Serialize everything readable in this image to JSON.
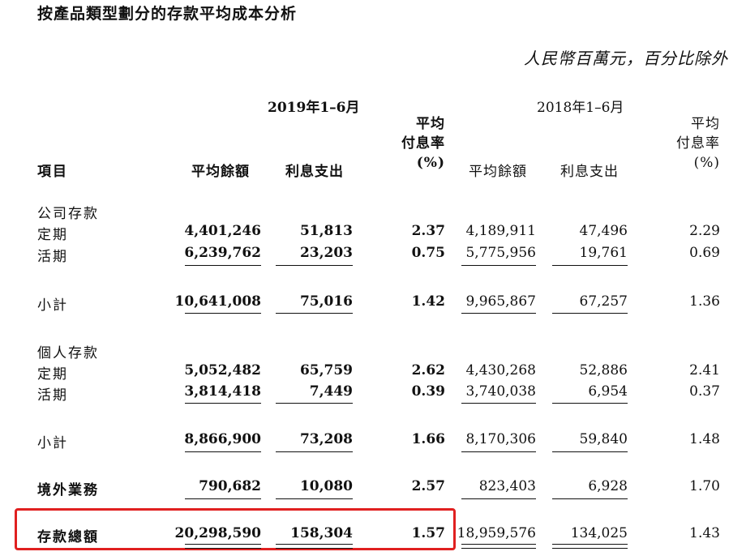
{
  "title": "按產品類型劃分的存款平均成本分析",
  "unit_note": "人民幣百萬元，百分比除外",
  "periods": {
    "current": "2019年1–6月",
    "prior": "2018年1–6月"
  },
  "headers": {
    "item": "項目",
    "avg_balance": "平均餘額",
    "interest": "利息支出",
    "rate_line1": "平均",
    "rate_line2": "付息率",
    "rate_line3": "(%)"
  },
  "sections": {
    "corporate": {
      "label": "公司存款",
      "time": {
        "label": "定期",
        "c_bal": "4,401,246",
        "c_int": "51,813",
        "c_rate": "2.37",
        "p_bal": "4,189,911",
        "p_int": "47,496",
        "p_rate": "2.29"
      },
      "demand": {
        "label": "活期",
        "c_bal": "6,239,762",
        "c_int": "23,203",
        "c_rate": "0.75",
        "p_bal": "5,775,956",
        "p_int": "19,761",
        "p_rate": "0.69"
      },
      "subtotal": {
        "label": "小計",
        "c_bal": "10,641,008",
        "c_int": "75,016",
        "c_rate": "1.42",
        "p_bal": "9,965,867",
        "p_int": "67,257",
        "p_rate": "1.36"
      }
    },
    "personal": {
      "label": "個人存款",
      "time": {
        "label": "定期",
        "c_bal": "5,052,482",
        "c_int": "65,759",
        "c_rate": "2.62",
        "p_bal": "4,430,268",
        "p_int": "52,886",
        "p_rate": "2.41"
      },
      "demand": {
        "label": "活期",
        "c_bal": "3,814,418",
        "c_int": "7,449",
        "c_rate": "0.39",
        "p_bal": "3,740,038",
        "p_int": "6,954",
        "p_rate": "0.37"
      },
      "subtotal": {
        "label": "小計",
        "c_bal": "8,866,900",
        "c_int": "73,208",
        "c_rate": "1.66",
        "p_bal": "8,170,306",
        "p_int": "59,840",
        "p_rate": "1.48"
      }
    },
    "overseas": {
      "label": "境外業務",
      "c_bal": "790,682",
      "c_int": "10,080",
      "c_rate": "2.57",
      "p_bal": "823,403",
      "p_int": "6,928",
      "p_rate": "1.70"
    },
    "total": {
      "label": "存款總額",
      "c_bal": "20,298,590",
      "c_int": "158,304",
      "c_rate": "1.57",
      "p_bal": "18,959,576",
      "p_int": "134,025",
      "p_rate": "1.43"
    }
  },
  "highlight_color": "#e02020"
}
